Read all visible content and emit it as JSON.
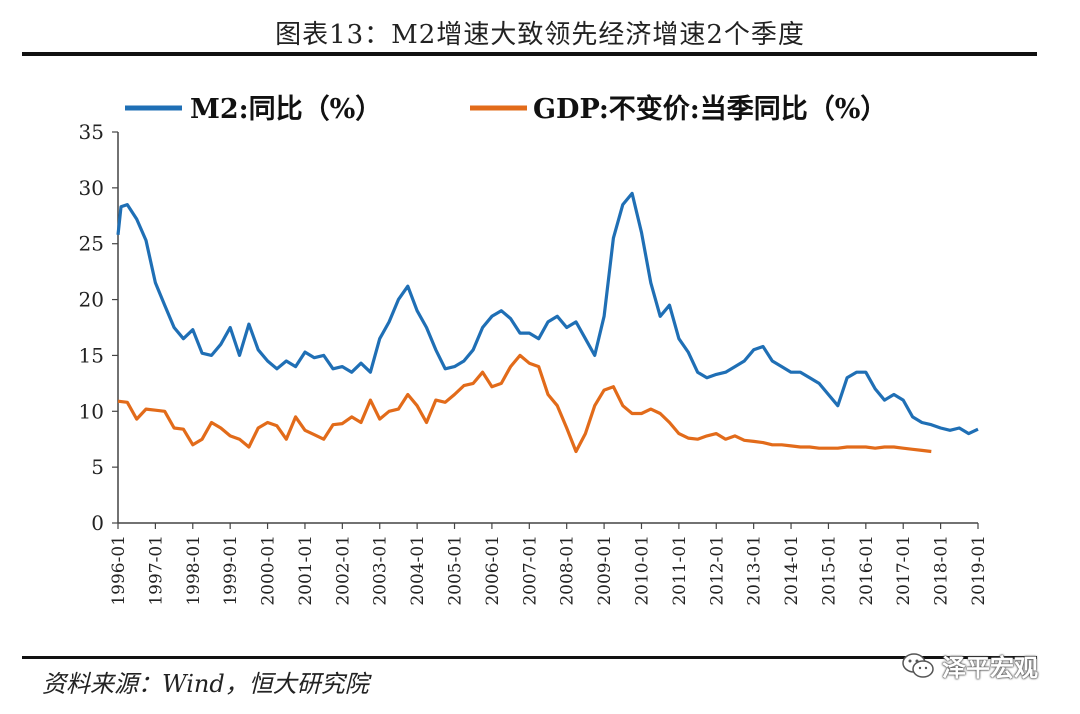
{
  "title": "图表13：M2增速大致领先经济增速2个季度",
  "source": "资料来源：Wind，恒大研究院",
  "watermark": "泽平宏观",
  "chart_data": {
    "type": "line",
    "legend_position": "top",
    "ylim": [
      0,
      35
    ],
    "yticks": [
      0,
      5,
      10,
      15,
      20,
      25,
      30,
      35
    ],
    "xticks": [
      "1996-01",
      "1997-01",
      "1998-01",
      "1999-01",
      "2000-01",
      "2001-01",
      "2002-01",
      "2003-01",
      "2004-01",
      "2005-01",
      "2006-01",
      "2007-01",
      "2008-01",
      "2009-01",
      "2010-01",
      "2011-01",
      "2012-01",
      "2013-01",
      "2014-01",
      "2015-01",
      "2016-01",
      "2017-01",
      "2018-01",
      "2019-01"
    ],
    "series": [
      {
        "name": "M2:同比（%）",
        "color": "#1f6fb5",
        "points": [
          [
            1996.0,
            25.8
          ],
          [
            1996.08,
            28.3
          ],
          [
            1996.25,
            28.5
          ],
          [
            1996.5,
            27.2
          ],
          [
            1996.75,
            25.3
          ],
          [
            1997.0,
            21.5
          ],
          [
            1997.25,
            19.5
          ],
          [
            1997.5,
            17.5
          ],
          [
            1997.75,
            16.5
          ],
          [
            1998.0,
            17.3
          ],
          [
            1998.25,
            15.2
          ],
          [
            1998.5,
            15.0
          ],
          [
            1998.75,
            16.0
          ],
          [
            1999.0,
            17.5
          ],
          [
            1999.25,
            15.0
          ],
          [
            1999.5,
            17.8
          ],
          [
            1999.75,
            15.5
          ],
          [
            2000.0,
            14.5
          ],
          [
            2000.25,
            13.8
          ],
          [
            2000.5,
            14.5
          ],
          [
            2000.75,
            14.0
          ],
          [
            2001.0,
            15.3
          ],
          [
            2001.25,
            14.8
          ],
          [
            2001.5,
            15.0
          ],
          [
            2001.75,
            13.8
          ],
          [
            2002.0,
            14.0
          ],
          [
            2002.25,
            13.5
          ],
          [
            2002.5,
            14.3
          ],
          [
            2002.75,
            13.5
          ],
          [
            2003.0,
            16.5
          ],
          [
            2003.25,
            18.0
          ],
          [
            2003.5,
            20.0
          ],
          [
            2003.75,
            21.2
          ],
          [
            2004.0,
            19.0
          ],
          [
            2004.25,
            17.5
          ],
          [
            2004.5,
            15.5
          ],
          [
            2004.75,
            13.8
          ],
          [
            2005.0,
            14.0
          ],
          [
            2005.25,
            14.5
          ],
          [
            2005.5,
            15.5
          ],
          [
            2005.75,
            17.5
          ],
          [
            2006.0,
            18.5
          ],
          [
            2006.25,
            19.0
          ],
          [
            2006.5,
            18.3
          ],
          [
            2006.75,
            17.0
          ],
          [
            2007.0,
            17.0
          ],
          [
            2007.25,
            16.5
          ],
          [
            2007.5,
            18.0
          ],
          [
            2007.75,
            18.5
          ],
          [
            2008.0,
            17.5
          ],
          [
            2008.25,
            18.0
          ],
          [
            2008.5,
            16.5
          ],
          [
            2008.75,
            15.0
          ],
          [
            2009.0,
            18.5
          ],
          [
            2009.25,
            25.5
          ],
          [
            2009.5,
            28.5
          ],
          [
            2009.75,
            29.5
          ],
          [
            2010.0,
            26.0
          ],
          [
            2010.25,
            21.5
          ],
          [
            2010.5,
            18.5
          ],
          [
            2010.75,
            19.5
          ],
          [
            2011.0,
            16.5
          ],
          [
            2011.25,
            15.3
          ],
          [
            2011.5,
            13.5
          ],
          [
            2011.75,
            13.0
          ],
          [
            2012.0,
            13.3
          ],
          [
            2012.25,
            13.5
          ],
          [
            2012.5,
            14.0
          ],
          [
            2012.75,
            14.5
          ],
          [
            2013.0,
            15.5
          ],
          [
            2013.25,
            15.8
          ],
          [
            2013.5,
            14.5
          ],
          [
            2013.75,
            14.0
          ],
          [
            2014.0,
            13.5
          ],
          [
            2014.25,
            13.5
          ],
          [
            2014.5,
            13.0
          ],
          [
            2014.75,
            12.5
          ],
          [
            2015.0,
            11.5
          ],
          [
            2015.25,
            10.5
          ],
          [
            2015.5,
            13.0
          ],
          [
            2015.75,
            13.5
          ],
          [
            2016.0,
            13.5
          ],
          [
            2016.25,
            12.0
          ],
          [
            2016.5,
            11.0
          ],
          [
            2016.75,
            11.5
          ],
          [
            2017.0,
            11.0
          ],
          [
            2017.25,
            9.5
          ],
          [
            2017.5,
            9.0
          ],
          [
            2017.75,
            8.8
          ],
          [
            2018.0,
            8.5
          ],
          [
            2018.25,
            8.3
          ],
          [
            2018.5,
            8.5
          ],
          [
            2018.75,
            8.0
          ],
          [
            2019.0,
            8.4
          ]
        ]
      },
      {
        "name": "GDP:不变价:当季同比（%）",
        "color": "#e26b1a",
        "points": [
          [
            1996.0,
            10.9
          ],
          [
            1996.25,
            10.8
          ],
          [
            1996.5,
            9.3
          ],
          [
            1996.75,
            10.2
          ],
          [
            1997.0,
            10.1
          ],
          [
            1997.25,
            10.0
          ],
          [
            1997.5,
            8.5
          ],
          [
            1997.75,
            8.4
          ],
          [
            1998.0,
            7.0
          ],
          [
            1998.25,
            7.5
          ],
          [
            1998.5,
            9.0
          ],
          [
            1998.75,
            8.5
          ],
          [
            1999.0,
            7.8
          ],
          [
            1999.25,
            7.5
          ],
          [
            1999.5,
            6.8
          ],
          [
            1999.75,
            8.5
          ],
          [
            2000.0,
            9.0
          ],
          [
            2000.25,
            8.7
          ],
          [
            2000.5,
            7.5
          ],
          [
            2000.75,
            9.5
          ],
          [
            2001.0,
            8.3
          ],
          [
            2001.25,
            7.9
          ],
          [
            2001.5,
            7.5
          ],
          [
            2001.75,
            8.8
          ],
          [
            2002.0,
            8.9
          ],
          [
            2002.25,
            9.5
          ],
          [
            2002.5,
            9.0
          ],
          [
            2002.75,
            11.0
          ],
          [
            2003.0,
            9.3
          ],
          [
            2003.25,
            10.0
          ],
          [
            2003.5,
            10.2
          ],
          [
            2003.75,
            11.5
          ],
          [
            2004.0,
            10.5
          ],
          [
            2004.25,
            9.0
          ],
          [
            2004.5,
            11.0
          ],
          [
            2004.75,
            10.8
          ],
          [
            2005.0,
            11.5
          ],
          [
            2005.25,
            12.3
          ],
          [
            2005.5,
            12.5
          ],
          [
            2005.75,
            13.5
          ],
          [
            2006.0,
            12.2
          ],
          [
            2006.25,
            12.5
          ],
          [
            2006.5,
            14.0
          ],
          [
            2006.75,
            15.0
          ],
          [
            2007.0,
            14.3
          ],
          [
            2007.25,
            14.0
          ],
          [
            2007.5,
            11.5
          ],
          [
            2007.75,
            10.5
          ],
          [
            2008.0,
            8.5
          ],
          [
            2008.25,
            6.4
          ],
          [
            2008.5,
            8.0
          ],
          [
            2008.75,
            10.5
          ],
          [
            2009.0,
            11.9
          ],
          [
            2009.25,
            12.2
          ],
          [
            2009.5,
            10.5
          ],
          [
            2009.75,
            9.8
          ],
          [
            2010.0,
            9.8
          ],
          [
            2010.25,
            10.2
          ],
          [
            2010.5,
            9.8
          ],
          [
            2010.75,
            9.0
          ],
          [
            2011.0,
            8.0
          ],
          [
            2011.25,
            7.6
          ],
          [
            2011.5,
            7.5
          ],
          [
            2011.75,
            7.8
          ],
          [
            2012.0,
            8.0
          ],
          [
            2012.25,
            7.5
          ],
          [
            2012.5,
            7.8
          ],
          [
            2012.75,
            7.4
          ],
          [
            2013.0,
            7.3
          ],
          [
            2013.25,
            7.2
          ],
          [
            2013.5,
            7.0
          ],
          [
            2013.75,
            7.0
          ],
          [
            2014.0,
            6.9
          ],
          [
            2014.25,
            6.8
          ],
          [
            2014.5,
            6.8
          ],
          [
            2014.75,
            6.7
          ],
          [
            2015.0,
            6.7
          ],
          [
            2015.25,
            6.7
          ],
          [
            2015.5,
            6.8
          ],
          [
            2015.75,
            6.8
          ],
          [
            2016.0,
            6.8
          ],
          [
            2016.25,
            6.7
          ],
          [
            2016.5,
            6.8
          ],
          [
            2016.75,
            6.8
          ],
          [
            2017.0,
            6.7
          ],
          [
            2017.25,
            6.6
          ],
          [
            2017.5,
            6.5
          ],
          [
            2017.75,
            6.4
          ]
        ]
      }
    ]
  }
}
